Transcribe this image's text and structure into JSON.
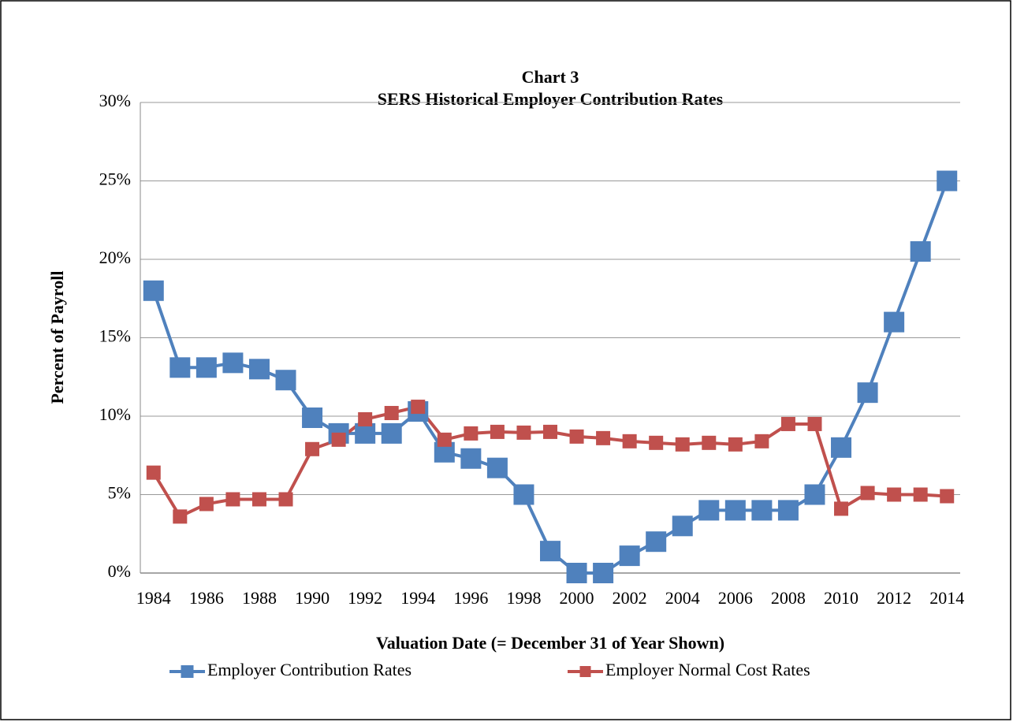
{
  "chart_data": {
    "type": "line",
    "title": "Chart 3",
    "subtitle": "SERS Historical Employer Contribution Rates",
    "x_label": "Valuation Date (= December 31 of Year Shown)",
    "y_label": "Percent of Payroll",
    "x": [
      1984,
      1985,
      1986,
      1987,
      1988,
      1989,
      1990,
      1991,
      1992,
      1993,
      1994,
      1995,
      1996,
      1997,
      1998,
      1999,
      2000,
      2001,
      2002,
      2003,
      2004,
      2005,
      2006,
      2007,
      2008,
      2009,
      2010,
      2011,
      2012,
      2013,
      2014
    ],
    "series": [
      {
        "name": "Employer Contribution Rates",
        "color": "#4f81bd",
        "values": [
          18.0,
          13.1,
          13.1,
          13.4,
          13.0,
          12.3,
          9.9,
          8.9,
          8.9,
          8.9,
          10.3,
          7.7,
          7.3,
          6.7,
          5.0,
          1.4,
          0,
          0,
          1.1,
          2.0,
          3.0,
          4.0,
          4.0,
          4.0,
          4.0,
          5.0,
          8.0,
          11.5,
          16.0,
          20.5,
          25.0
        ]
      },
      {
        "name": "Employer Normal Cost Rates",
        "color": "#c0504d",
        "values": [
          6.4,
          3.6,
          4.4,
          4.7,
          4.7,
          4.7,
          7.9,
          8.5,
          9.8,
          10.2,
          10.6,
          8.5,
          8.9,
          9.0,
          8.95,
          9.0,
          8.7,
          8.6,
          8.4,
          8.3,
          8.2,
          8.3,
          8.2,
          8.4,
          9.5,
          9.5,
          4.1,
          5.1,
          5.0,
          5.0,
          4.9
        ]
      }
    ],
    "xlim": [
      1983.5,
      2014.5
    ],
    "xticks": [
      1984,
      1986,
      1988,
      1990,
      1992,
      1994,
      1996,
      1998,
      2000,
      2002,
      2004,
      2006,
      2008,
      2010,
      2012,
      2014
    ],
    "ylim": [
      0,
      30
    ],
    "yticks": [
      {
        "value": 0,
        "label": "0%"
      },
      {
        "value": 5,
        "label": "5%"
      },
      {
        "value": 10,
        "label": "10%"
      },
      {
        "value": 15,
        "label": "15%"
      },
      {
        "value": 20,
        "label": "20%"
      },
      {
        "value": 25,
        "label": "25%"
      },
      {
        "value": 30,
        "label": "30%"
      }
    ],
    "grid": true,
    "legend": "bottom"
  }
}
